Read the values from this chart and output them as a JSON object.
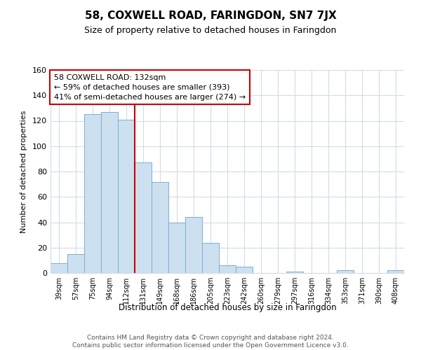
{
  "title": "58, COXWELL ROAD, FARINGDON, SN7 7JX",
  "subtitle": "Size of property relative to detached houses in Faringdon",
  "xlabel": "Distribution of detached houses by size in Faringdon",
  "ylabel": "Number of detached properties",
  "bin_labels": [
    "39sqm",
    "57sqm",
    "75sqm",
    "94sqm",
    "112sqm",
    "131sqm",
    "149sqm",
    "168sqm",
    "186sqm",
    "205sqm",
    "223sqm",
    "242sqm",
    "260sqm",
    "279sqm",
    "297sqm",
    "316sqm",
    "334sqm",
    "353sqm",
    "371sqm",
    "390sqm",
    "408sqm"
  ],
  "bar_heights": [
    8,
    15,
    125,
    127,
    121,
    87,
    72,
    40,
    44,
    24,
    6,
    5,
    0,
    0,
    1,
    0,
    0,
    2,
    0,
    0,
    2
  ],
  "bar_color": "#cce0f0",
  "bar_edge_color": "#7ab0d4",
  "vline_index": 5,
  "vline_color": "#cc0000",
  "annotation_line1": "58 COXWELL ROAD: 132sqm",
  "annotation_line2": "← 59% of detached houses are smaller (393)",
  "annotation_line3": "41% of semi-detached houses are larger (274) →",
  "annotation_box_color": "#ffffff",
  "annotation_box_edge": "#cc0000",
  "ylim": [
    0,
    160
  ],
  "yticks": [
    0,
    20,
    40,
    60,
    80,
    100,
    120,
    140,
    160
  ],
  "grid_color": "#d0dce8",
  "background_color": "#ffffff",
  "footer_text": "Contains HM Land Registry data © Crown copyright and database right 2024.\nContains public sector information licensed under the Open Government Licence v3.0."
}
